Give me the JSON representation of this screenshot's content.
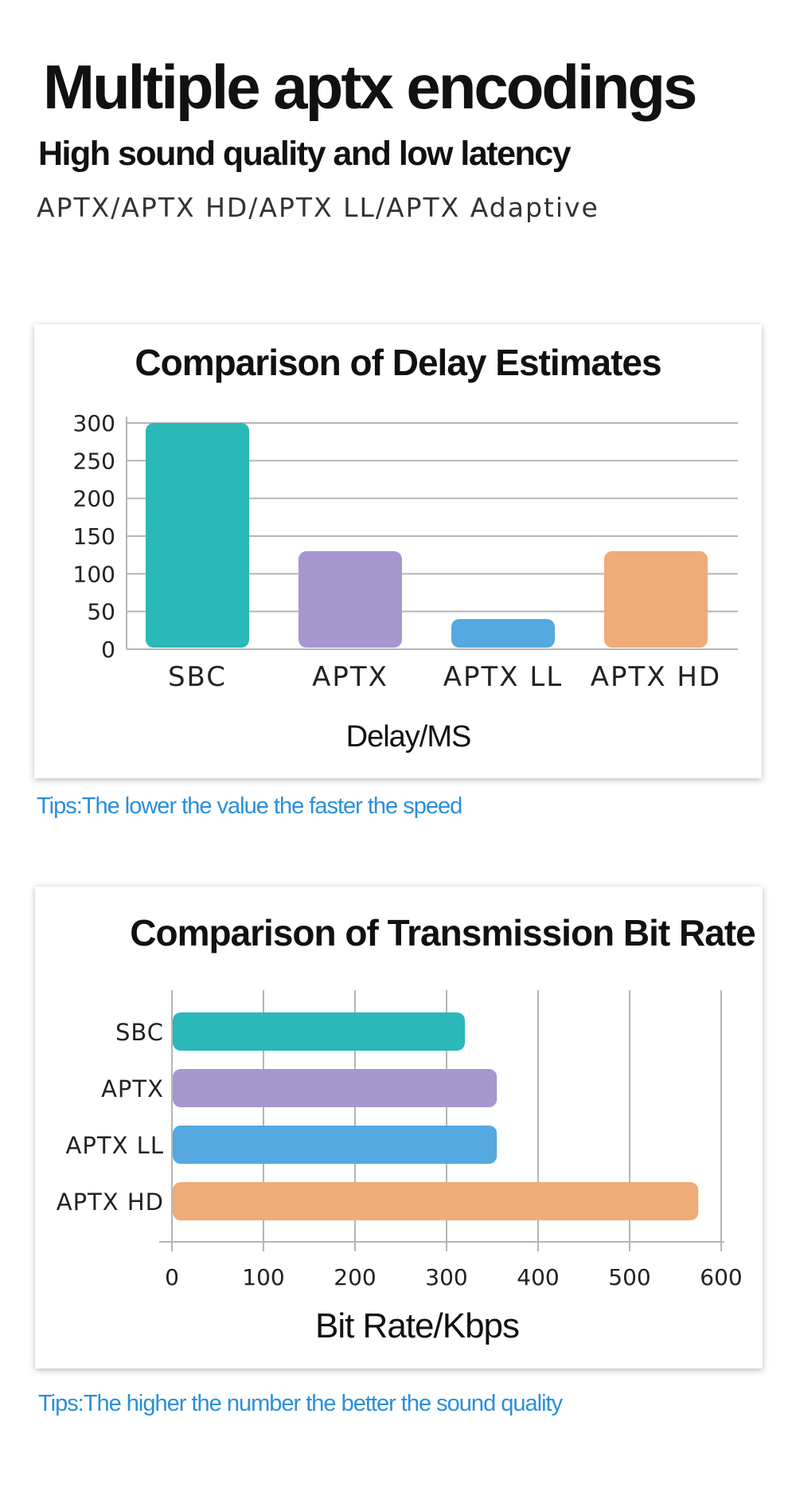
{
  "header": {
    "title": "Multiple aptx encodings",
    "subtitle": "High sound quality and low latency",
    "codecs": "APTX/APTX HD/APTX LL/APTX Adaptive"
  },
  "chart_data": [
    {
      "type": "bar",
      "orientation": "vertical",
      "title": "Comparison of Delay Estimates",
      "categories": [
        "SBC",
        "APTX",
        "APTX LL",
        "APTX HD"
      ],
      "values": [
        300,
        130,
        40,
        130
      ],
      "colors": [
        "#2bb8b8",
        "#a797cf",
        "#55a8e0",
        "#efab78"
      ],
      "xlabel": "Delay/MS",
      "ylabel": "",
      "ylim": [
        0,
        300
      ],
      "yticks": [
        0,
        50,
        100,
        150,
        200,
        250,
        300
      ],
      "grid": true,
      "gridColor": "#b5b5b5",
      "tip": "Tips:The lower the value the faster the speed"
    },
    {
      "type": "bar",
      "orientation": "horizontal",
      "title": "Comparison of Transmission Bit Rate",
      "categories": [
        "SBC",
        "APTX",
        "APTX LL",
        "APTX HD"
      ],
      "values": [
        320,
        355,
        355,
        575
      ],
      "colors": [
        "#2bb8b8",
        "#a797cf",
        "#55a8e0",
        "#efab78"
      ],
      "xlabel": "Bit Rate/Kbps",
      "ylabel": "",
      "xlim": [
        0,
        600
      ],
      "xticks": [
        0,
        100,
        200,
        300,
        400,
        500,
        600
      ],
      "grid": true,
      "gridColor": "#b5b5b5",
      "tip": "Tips:The higher the number the better the sound quality"
    }
  ]
}
